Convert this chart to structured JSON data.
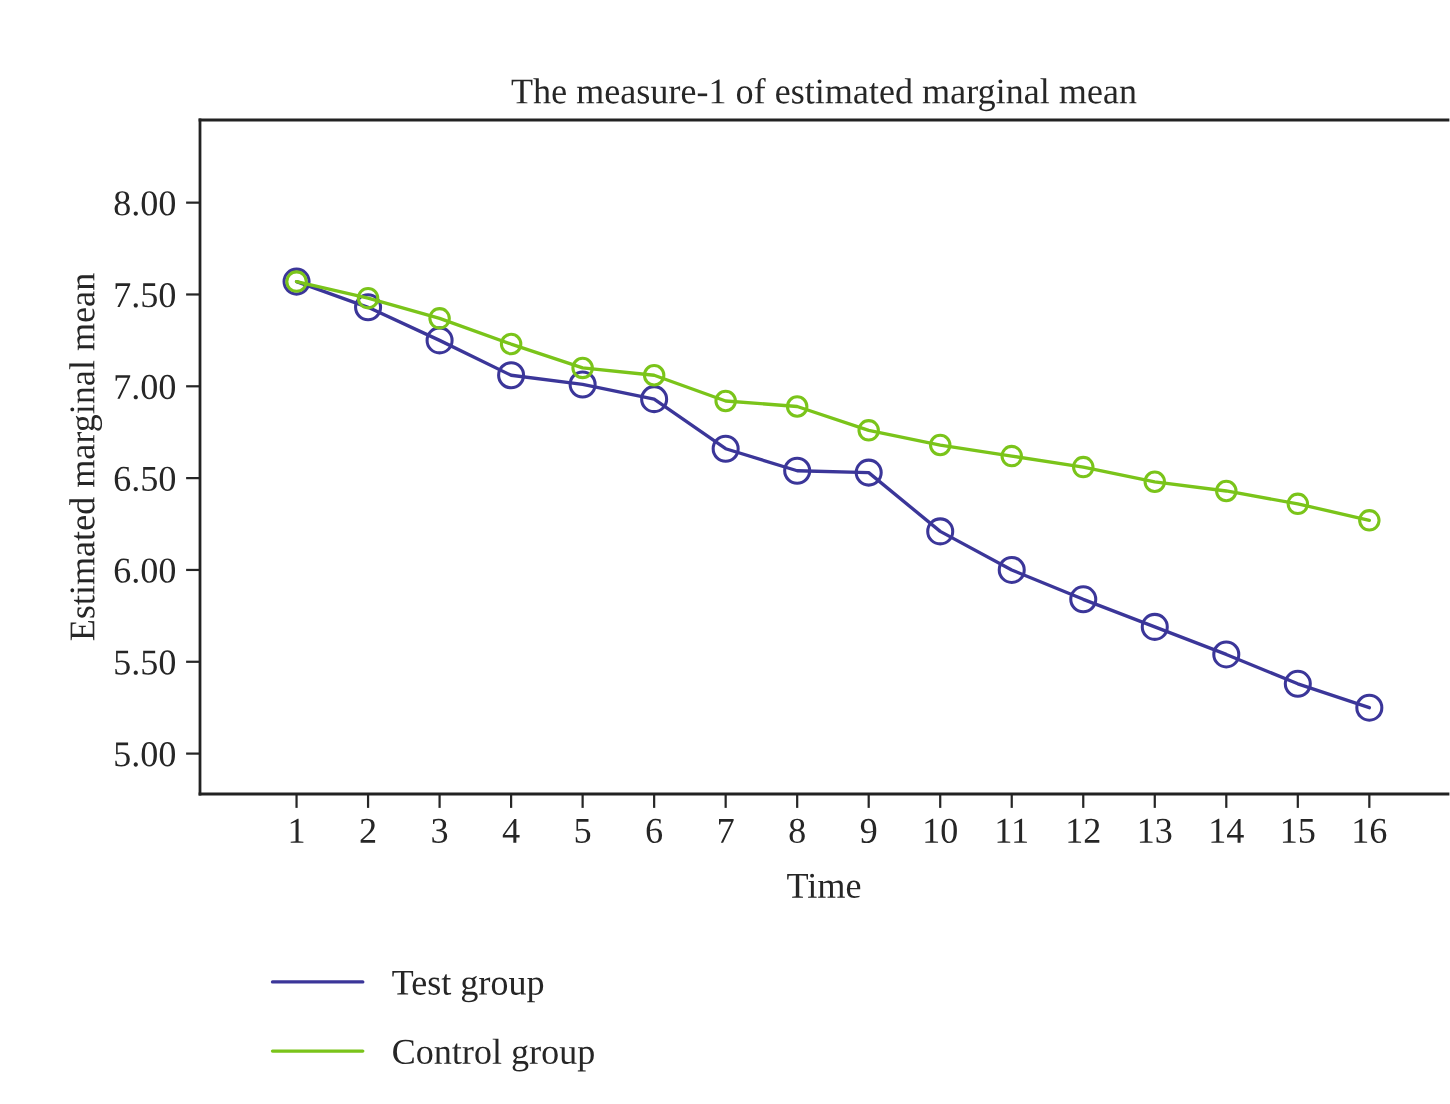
{
  "chart_data": {
    "type": "line",
    "title": "The measure-1 of estimated marginal mean",
    "xlabel": "Time",
    "ylabel": "Estimated marginal mean",
    "x": [
      1,
      2,
      3,
      4,
      5,
      6,
      7,
      8,
      9,
      10,
      11,
      12,
      13,
      14,
      15,
      16
    ],
    "series": [
      {
        "name": "Test group",
        "color": "#3b3699",
        "values": [
          7.57,
          7.43,
          7.25,
          7.06,
          7.01,
          6.93,
          6.66,
          6.54,
          6.53,
          6.21,
          6.0,
          5.84,
          5.69,
          5.54,
          5.38,
          5.25
        ]
      },
      {
        "name": "Control group",
        "color": "#7ac41a",
        "values": [
          7.57,
          7.48,
          7.37,
          7.23,
          7.1,
          7.06,
          6.92,
          6.89,
          6.76,
          6.68,
          6.62,
          6.56,
          6.48,
          6.43,
          6.36,
          6.27
        ]
      }
    ],
    "xlim": [
      -0.35,
      17.1
    ],
    "xticks": [
      1,
      2,
      3,
      4,
      5,
      6,
      7,
      8,
      9,
      10,
      11,
      12,
      13,
      14,
      15,
      16
    ],
    "ylim": [
      4.78,
      8.45
    ],
    "yticks": [
      {
        "value": 5,
        "label": "5.00"
      },
      {
        "value": 5.5,
        "label": "5.50"
      },
      {
        "value": 6,
        "label": "6.00"
      },
      {
        "value": 6.5,
        "label": "6.50"
      },
      {
        "value": 7,
        "label": "7.00"
      },
      {
        "value": 7.5,
        "label": "7.50"
      },
      {
        "value": 8,
        "label": "8.00"
      }
    ],
    "grid": false,
    "legend": "bottom left",
    "marker": "circle",
    "line_style": "solid"
  }
}
